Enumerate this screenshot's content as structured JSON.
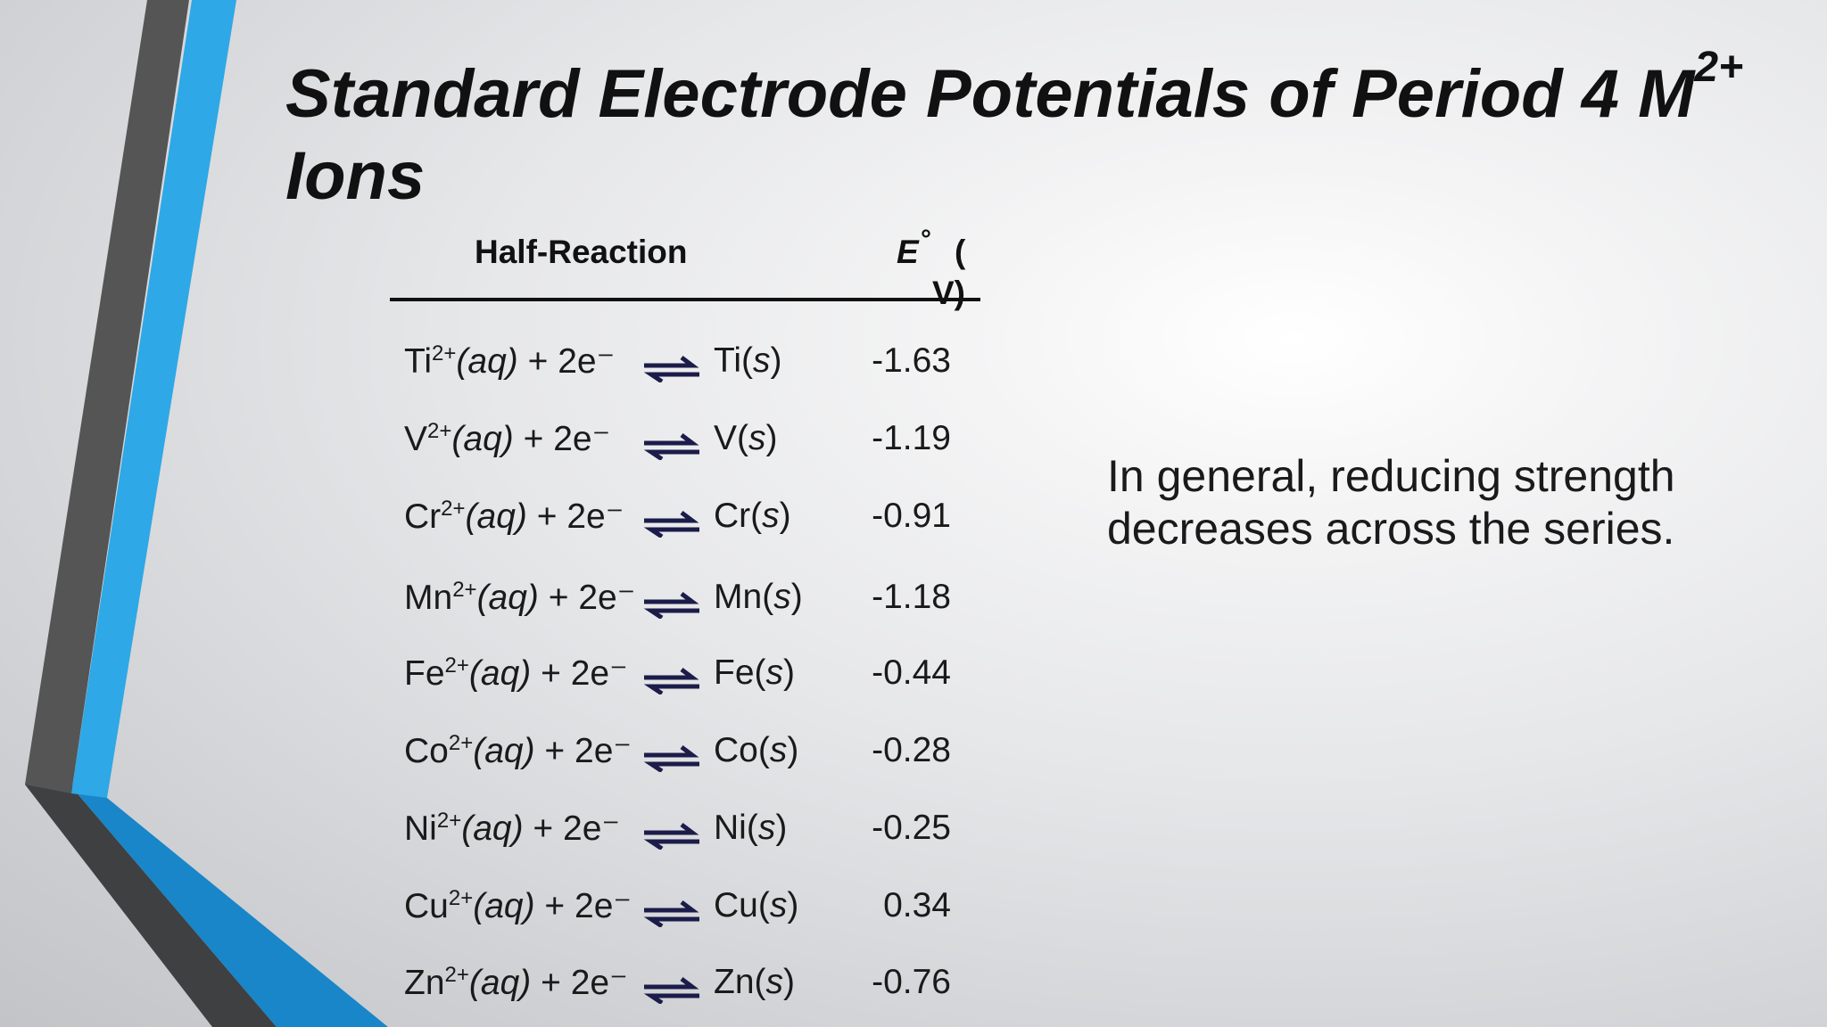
{
  "title": {
    "main": "Standard Electrode Potentials of Period 4 M",
    "charge": "2+",
    "line2": "Ions"
  },
  "table": {
    "header_reaction": "Half-Reaction",
    "header_e_letter": "E",
    "header_e_degree": "°",
    "header_e_unit_open": "(",
    "header_e_unit_close": "V)",
    "rows": [
      {
        "ion": "Ti",
        "charge": "2+",
        "aq": "(aq)",
        "electrons": " + 2e⁻",
        "product_symbol": "Ti",
        "state": "s",
        "potential": "-1.63"
      },
      {
        "ion": "V",
        "charge": "2+",
        "aq": "(aq)",
        "electrons": " + 2e⁻",
        "product_symbol": "V",
        "state": "s",
        "potential": "-1.19"
      },
      {
        "ion": "Cr",
        "charge": "2+",
        "aq": "(aq)",
        "electrons": " + 2e⁻",
        "product_symbol": "Cr",
        "state": "s",
        "potential": "-0.91"
      },
      {
        "ion": "Mn",
        "charge": "2+",
        "aq": "(aq)",
        "electrons": " + 2e⁻",
        "product_symbol": "Mn",
        "state": "s",
        "potential": "-1.18"
      },
      {
        "ion": "Fe",
        "charge": "2+",
        "aq": "(aq)",
        "electrons": " + 2e⁻",
        "product_symbol": "Fe",
        "state": "s",
        "potential": "-0.44"
      },
      {
        "ion": "Co",
        "charge": "2+",
        "aq": "(aq)",
        "electrons": " + 2e⁻",
        "product_symbol": "Co",
        "state": "s",
        "potential": "-0.28"
      },
      {
        "ion": "Ni",
        "charge": "2+",
        "aq": "(aq)",
        "electrons": " + 2e⁻",
        "product_symbol": "Ni",
        "state": "s",
        "potential": "-0.25"
      },
      {
        "ion": "Cu",
        "charge": "2+",
        "aq": "(aq)",
        "electrons": " + 2e⁻",
        "product_symbol": "Cu",
        "state": "s",
        "potential": "0.34"
      },
      {
        "ion": "Zn",
        "charge": "2+",
        "aq": "(aq)",
        "electrons": " + 2e⁻",
        "product_symbol": "Zn",
        "state": "s",
        "potential": "-0.76"
      }
    ]
  },
  "note": {
    "line1": "In general, reducing strength",
    "line2": "decreases across the series."
  },
  "colors": {
    "accent_blue": "#2ea8e6",
    "accent_dark_blue": "#1886c8",
    "dark_gray": "#555555",
    "charcoal": "#3f4042",
    "arrow_navy": "#1c1c4a"
  }
}
